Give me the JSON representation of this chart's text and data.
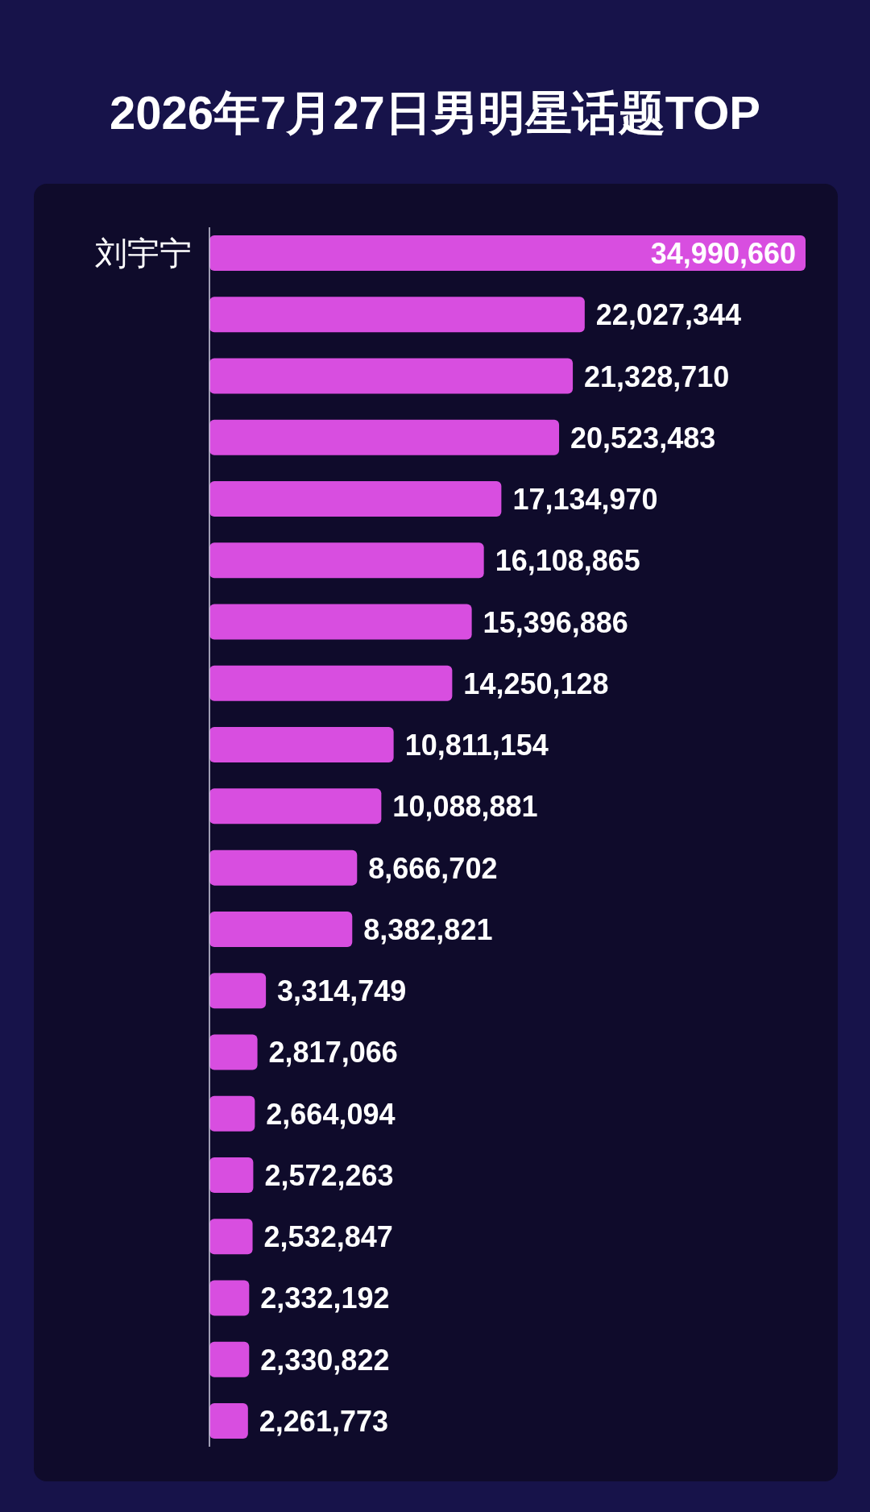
{
  "chart_data": {
    "type": "bar",
    "orientation": "horizontal",
    "title": "2026年7月27日男明星话题TOP",
    "categories": [
      "刘宇宁",
      null,
      null,
      null,
      null,
      null,
      null,
      null,
      null,
      null,
      null,
      null,
      null,
      null,
      null,
      null,
      null,
      null,
      null,
      null
    ],
    "values": [
      34990660,
      22027344,
      21328710,
      20523483,
      17134970,
      16108865,
      15396886,
      14250128,
      10811154,
      10088881,
      8666702,
      8382821,
      3314749,
      2817066,
      2664094,
      2572263,
      2532847,
      2332192,
      2330822,
      2261773
    ],
    "value_labels": [
      "34,990,660",
      "22,027,344",
      "21,328,710",
      "20,523,483",
      "17,134,970",
      "16,108,865",
      "15,396,886",
      "14,250,128",
      "10,811,154",
      "10,088,881",
      "8,666,702",
      "8,382,821",
      "3,314,749",
      "2,817,066",
      "2,664,094",
      "2,572,263",
      "2,532,847",
      "2,332,192",
      "2,330,822",
      "2,261,773"
    ],
    "color": "#d84ee0"
  }
}
